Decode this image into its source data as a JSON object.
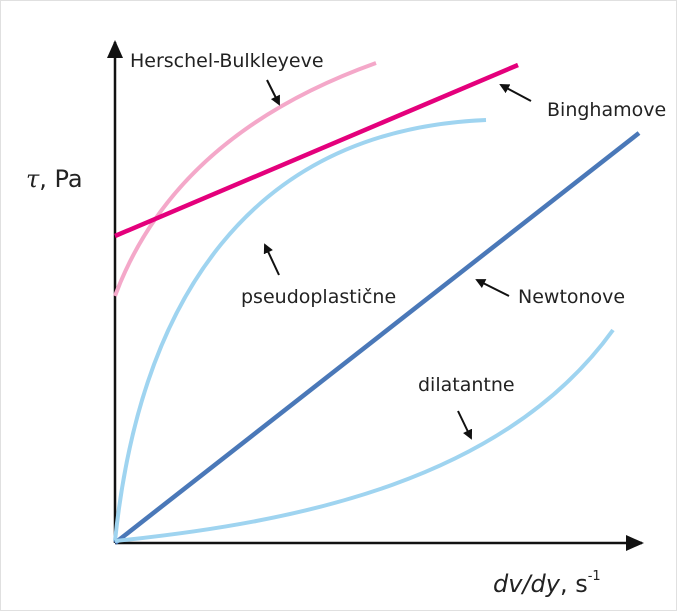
{
  "y_axis": {
    "symbol": "τ",
    "unit": ", Pa"
  },
  "x_axis": {
    "symbol": "dv/dy",
    "unit": ", s",
    "exponent": "-1"
  },
  "curves": {
    "herschel_bulkley": "Herschel-Bulkleyeve",
    "bingham": "Binghamove",
    "pseudoplastic": "pseudoplastične",
    "newtonian": "Newtonove",
    "dilatant": "dilatantne"
  }
}
